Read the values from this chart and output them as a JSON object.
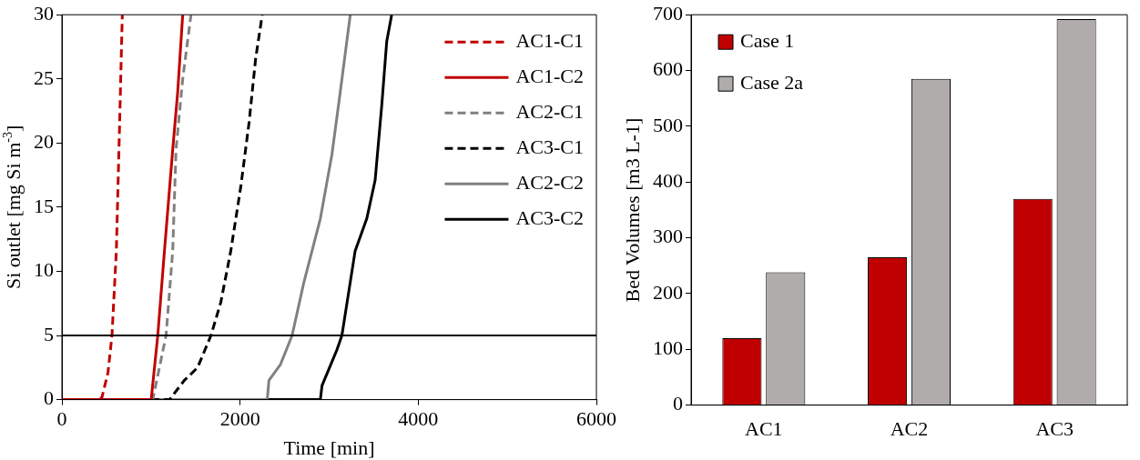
{
  "chart_data": [
    {
      "type": "line",
      "xlabel": "Time [min]",
      "ylabel": "Si outlet [mg Si m$^{-3}$]",
      "xlim": [
        0,
        6000
      ],
      "xticks": [
        0,
        2000,
        4000,
        6000
      ],
      "ylim": [
        0,
        30
      ],
      "yticks": [
        0,
        5,
        10,
        15,
        20,
        25,
        30
      ],
      "legend": "top right",
      "grid": false,
      "marker": "none",
      "ref_lines": [
        {
          "axis": "y",
          "value": 5,
          "color": "#000000"
        }
      ],
      "series": [
        {
          "name": "AC1-C1",
          "color": "#c00000",
          "line_style": "dashed",
          "x": [
            0,
            425,
            450,
            517,
            562,
            611,
            648,
            678
          ],
          "values": [
            0,
            0,
            0.2,
            2.1,
            5,
            11.6,
            21.6,
            30
          ]
        },
        {
          "name": "AC1-C2",
          "color": "#c00000",
          "line_style": "solid",
          "x": [
            0,
            1002,
            1076,
            1151,
            1244,
            1300,
            1356
          ],
          "values": [
            0,
            0,
            5,
            11.6,
            19.5,
            24,
            30
          ]
        },
        {
          "name": "AC2-C1",
          "color": "#808080",
          "line_style": "dashed",
          "x": [
            0,
            1020,
            1169,
            1244,
            1281,
            1356,
            1449
          ],
          "values": [
            0,
            0,
            5,
            11.6,
            19.5,
            25,
            30
          ]
        },
        {
          "name": "AC3-C1",
          "color": "#000000",
          "line_style": "dashed",
          "x": [
            0,
            1207,
            1374,
            1523,
            1673,
            1784,
            1896,
            2008,
            2101,
            2175,
            2249
          ],
          "values": [
            0,
            0,
            1.5,
            2.5,
            5,
            7.6,
            11.6,
            16.6,
            21.6,
            26.6,
            30
          ]
        },
        {
          "name": "AC2-C2",
          "color": "#808080",
          "line_style": "solid",
          "x": [
            0,
            2305,
            2324,
            2454,
            2584,
            2715,
            2901,
            3031,
            3125,
            3237
          ],
          "values": [
            0,
            0,
            1.5,
            2.75,
            5,
            9.1,
            14.1,
            19.1,
            24,
            30
          ]
        },
        {
          "name": "AC3-C2",
          "color": "#000000",
          "line_style": "solid",
          "x": [
            0,
            2901,
            2920,
            3088,
            3143,
            3292,
            3422,
            3516,
            3590,
            3646,
            3702
          ],
          "values": [
            0,
            0,
            1.1,
            3.9,
            5,
            11.6,
            14.1,
            17.1,
            22.9,
            27.9,
            30
          ]
        }
      ]
    },
    {
      "type": "bar",
      "ylabel": "Bed Volumes [m3 L-1]",
      "categories": [
        "AC1",
        "AC2",
        "AC3"
      ],
      "ylim": [
        0,
        700
      ],
      "yticks": [
        0,
        100,
        200,
        300,
        400,
        500,
        600,
        700
      ],
      "legend": "top left",
      "grid": false,
      "series": [
        {
          "name": "Case 1",
          "color": "#c00000",
          "values": [
            120,
            265,
            370
          ]
        },
        {
          "name": "Case 2a",
          "color": "#b0acab",
          "values": [
            238,
            585,
            692
          ]
        }
      ]
    }
  ]
}
